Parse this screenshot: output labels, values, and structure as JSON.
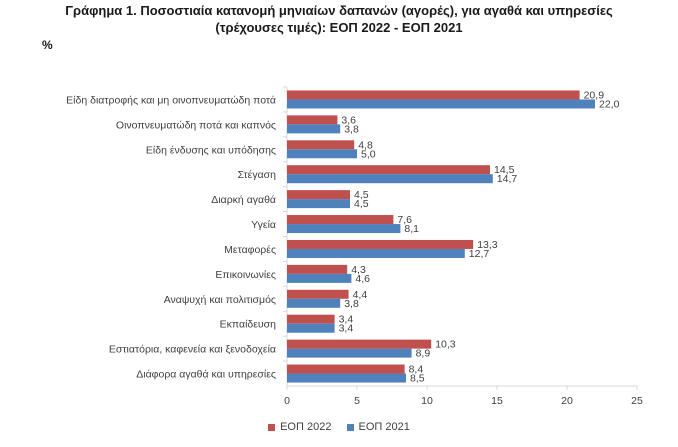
{
  "title_line1": "Γράφημα 1. Ποσοστιαία κατανομή μηνιαίων δαπανών (αγορές), για αγαθά και υπηρεσίες",
  "title_line2": "(τρέχουσες τιμές): ΕΟΠ 2022 - ΕΟΠ 2021",
  "unit_label": "%",
  "colors": {
    "s2022": "#c0504d",
    "s2021": "#4f81bd",
    "axis": "#d9d9d9"
  },
  "chart_data": {
    "type": "bar",
    "orientation": "horizontal",
    "title": "Γράφημα 1. Ποσοστιαία κατανομή μηνιαίων δαπανών (αγορές), για αγαθά και υπηρεσίες (τρέχουσες τιμές): ΕΟΠ 2022 - ΕΟΠ 2021",
    "ylabel": "%",
    "xlim": [
      0,
      25
    ],
    "xticks": [
      0,
      5,
      10,
      15,
      20,
      25
    ],
    "grid": false,
    "legend_position": "bottom",
    "categories": [
      "Είδη διατροφής και μη οινοπνευματώδη ποτά",
      "Οινοπνευματώδη ποτά και καπνός",
      "Είδη ένδυσης και υπόδησης",
      "Στέγαση",
      "Διαρκή αγαθά",
      "Υγεία",
      "Μεταφορές",
      "Επικοινωνίες",
      "Αναψυχή και πολιτισμός",
      "Εκπαίδευση",
      "Εστιατόρια, καφενεία  και ξενοδοχεία",
      "Διάφορα αγαθά και υπηρεσίες"
    ],
    "series": [
      {
        "name": "ΕΟΠ 2022",
        "values": [
          20.9,
          3.6,
          4.8,
          14.5,
          4.5,
          7.6,
          13.3,
          4.3,
          4.4,
          3.4,
          10.3,
          8.4
        ],
        "labels": [
          "20,9",
          "3,6",
          "4,8",
          "14,5",
          "4,5",
          "7,6",
          "13,3",
          "4,3",
          "4,4",
          "3,4",
          "10,3",
          "8,4"
        ]
      },
      {
        "name": "ΕΟΠ 2021",
        "values": [
          22.0,
          3.8,
          5.0,
          14.7,
          4.5,
          8.1,
          12.7,
          4.6,
          3.8,
          3.4,
          8.9,
          8.5
        ],
        "labels": [
          "22,0",
          "3,8",
          "5,0",
          "14,7",
          "4,5",
          "8,1",
          "12,7",
          "4,6",
          "3,8",
          "3,4",
          "8,9",
          "8,5"
        ]
      }
    ]
  }
}
